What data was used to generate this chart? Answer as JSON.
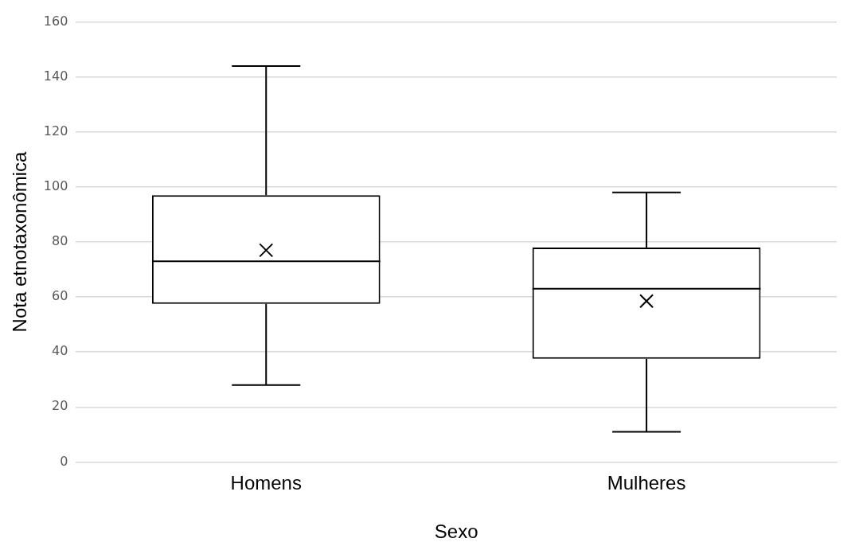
{
  "chart_data": {
    "type": "box",
    "xlabel": "Sexo",
    "ylabel": "Nota etnotaxonômica",
    "categories": [
      "Homens",
      "Mulheres"
    ],
    "boxes": [
      {
        "low": 28,
        "q1": 57.5,
        "median": 73,
        "q3": 97,
        "high": 144,
        "mean": 77
      },
      {
        "low": 11,
        "q1": 37.5,
        "median": 63,
        "q3": 78,
        "high": 98,
        "mean": 58.5
      }
    ],
    "color": "#000000",
    "ylim": [
      0,
      160
    ],
    "yticks": [
      0,
      20,
      40,
      60,
      80,
      100,
      120,
      140,
      160
    ],
    "grid": "y",
    "legend": false
  }
}
